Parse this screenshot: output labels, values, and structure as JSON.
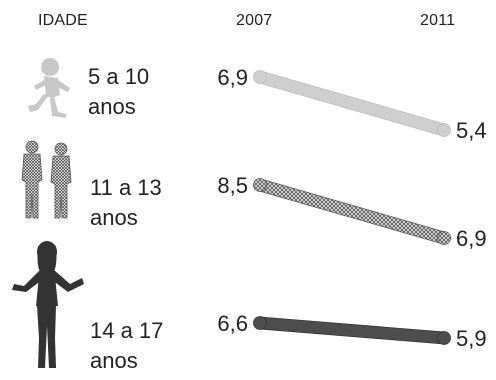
{
  "header": {
    "left": "IDADE",
    "year_start": "2007",
    "year_end": "2011"
  },
  "colors": {
    "group_1": "#cfcfcf",
    "group_2": "#9a9a9a",
    "group_3": "#4d4d4d"
  },
  "chart_data": {
    "type": "line",
    "categories": [
      "2007",
      "2011"
    ],
    "series": [
      {
        "name": "5 a 10 anos",
        "values": [
          6.9,
          5.4
        ],
        "labels": [
          "6,9",
          "5,4"
        ]
      },
      {
        "name": "11 a 13 anos",
        "values": [
          8.5,
          6.9
        ],
        "labels": [
          "8,5",
          "6,9"
        ]
      },
      {
        "name": "14 a 17 anos",
        "values": [
          6.6,
          5.9
        ],
        "labels": [
          "6,6",
          "5,9"
        ]
      }
    ]
  },
  "groups": [
    {
      "label_line1": "5 a 10",
      "label_line2": "anos",
      "icon": "child-running-icon"
    },
    {
      "label_line1": "11 a 13",
      "label_line2": "anos",
      "icon": "two-kids-icon"
    },
    {
      "label_line1": "14 a 17",
      "label_line2": "anos",
      "icon": "teen-girl-icon"
    }
  ]
}
